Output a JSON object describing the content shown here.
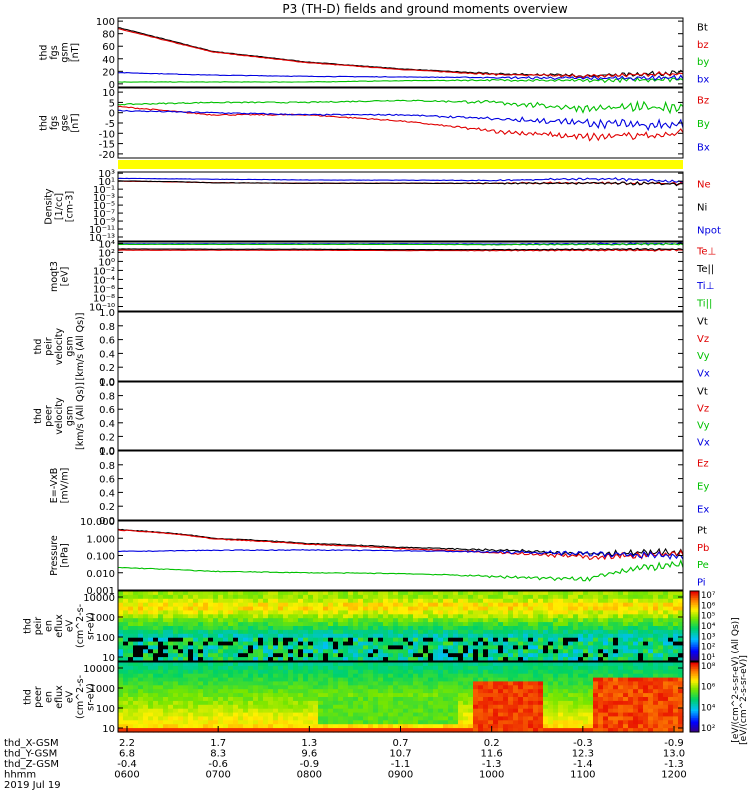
{
  "title": "P3 (TH-D) fields and ground moments overview",
  "colors": {
    "black": "#000000",
    "red": "#e00000",
    "green": "#00c000",
    "blue": "#0000e0",
    "flag_bar": "#ffff00"
  },
  "panels": [
    {
      "id": "fgs-gsm",
      "ylabel": [
        "thd",
        "fgs",
        "gsm",
        "[nT]"
      ],
      "ticks": [
        "100",
        "80",
        "60",
        "40",
        "20",
        "0"
      ],
      "tick_values": [
        100,
        80,
        60,
        40,
        20,
        0
      ],
      "ylim": [
        -5,
        105
      ],
      "legend": [
        {
          "label": "Bt",
          "color": "black"
        },
        {
          "label": "bz",
          "color": "red"
        },
        {
          "label": "by",
          "color": "green"
        },
        {
          "label": "bx",
          "color": "blue"
        }
      ]
    },
    {
      "id": "fgs-gse",
      "ylabel": [
        "thd",
        "fgs",
        "gse",
        "[nT]"
      ],
      "ticks": [
        "10",
        "5",
        "0",
        "-5",
        "-10",
        "-15",
        "-20"
      ],
      "tick_values": [
        10,
        5,
        0,
        -5,
        -10,
        -15,
        -20
      ],
      "ylim": [
        -22,
        12
      ],
      "legend": [
        {
          "label": "Bz",
          "color": "red"
        },
        {
          "label": "By",
          "color": "green"
        },
        {
          "label": "Bx",
          "color": "blue"
        }
      ]
    },
    {
      "id": "density",
      "ylabel": [
        "Density",
        "[1/cc]",
        "[cm-3]"
      ],
      "ticks": [
        "10³",
        "10¹",
        "10⁻¹",
        "10⁻³",
        "10⁻⁵",
        "10⁻⁷",
        "10⁻⁹",
        "10⁻¹¹",
        "10⁻¹³"
      ],
      "tick_values": [
        3,
        1,
        -1,
        -3,
        -5,
        -7,
        -9,
        -11,
        -13
      ],
      "ylim": [
        -14,
        3.3
      ],
      "legend": [
        {
          "label": "Ne",
          "color": "red"
        },
        {
          "label": "Ni",
          "color": "black"
        },
        {
          "label": "Npot",
          "color": "blue"
        }
      ]
    },
    {
      "id": "temperature",
      "ylabel": [
        "moqt3",
        "[eV]"
      ],
      "ticks": [
        "10⁴",
        "10²",
        "10⁰",
        "10⁻²",
        "10⁻⁴",
        "10⁻⁶",
        "10⁻⁸",
        "10⁻¹⁰"
      ],
      "tick_values": [
        4,
        2,
        0,
        -2,
        -4,
        -6,
        -8,
        -10
      ],
      "ylim": [
        -11,
        4.3
      ],
      "legend": [
        {
          "label": "Te⊥",
          "color": "red"
        },
        {
          "label": "Te||",
          "color": "black"
        },
        {
          "label": "Ti⊥",
          "color": "blue"
        },
        {
          "label": "Ti||",
          "color": "green"
        }
      ]
    },
    {
      "id": "peir-velocity",
      "ylabel": [
        "thd",
        "peir",
        "velocity",
        "gsm",
        "[km/s (All Qs)]"
      ],
      "ticks": [
        "1.0",
        "0.8",
        "0.6",
        "0.4",
        "0.2",
        "0.0"
      ],
      "tick_values": [
        1.0,
        0.8,
        0.6,
        0.4,
        0.2,
        0.0
      ],
      "ylim": [
        0,
        1
      ],
      "legend": [
        {
          "label": "Vt",
          "color": "black"
        },
        {
          "label": "Vz",
          "color": "red"
        },
        {
          "label": "Vy",
          "color": "green"
        },
        {
          "label": "Vx",
          "color": "blue"
        }
      ]
    },
    {
      "id": "peer-velocity",
      "ylabel": [
        "thd",
        "peer",
        "velocity",
        "gsm",
        "[km/s (All Qs)]"
      ],
      "ticks": [
        "1.0",
        "0.8",
        "0.6",
        "0.4",
        "0.2",
        "0.0"
      ],
      "tick_values": [
        1.0,
        0.8,
        0.6,
        0.4,
        0.2,
        0.0
      ],
      "ylim": [
        0,
        1
      ],
      "legend": [
        {
          "label": "Vt",
          "color": "black"
        },
        {
          "label": "Vz",
          "color": "red"
        },
        {
          "label": "Vy",
          "color": "green"
        },
        {
          "label": "Vx",
          "color": "blue"
        }
      ]
    },
    {
      "id": "e-field",
      "ylabel": [
        "E=-VxB",
        "[mV/m]"
      ],
      "ticks": [
        "1.0",
        "0.8",
        "0.6",
        "0.4",
        "0.2",
        "0.0"
      ],
      "tick_values": [
        1.0,
        0.8,
        0.6,
        0.4,
        0.2,
        0.0
      ],
      "ylim": [
        0,
        1
      ],
      "legend": [
        {
          "label": "Ez",
          "color": "red"
        },
        {
          "label": "Ey",
          "color": "green"
        },
        {
          "label": "Ex",
          "color": "blue"
        }
      ]
    },
    {
      "id": "pressure",
      "ylabel": [
        "Pressure",
        "[nPa]"
      ],
      "ticks": [
        "10.000",
        "1.000",
        "0.100",
        "0.010",
        "0.001"
      ],
      "tick_values": [
        1,
        0,
        -1,
        -2,
        -3
      ],
      "ylim": [
        -3,
        1
      ],
      "legend": [
        {
          "label": "Pt",
          "color": "black"
        },
        {
          "label": "Pb",
          "color": "red"
        },
        {
          "label": "Pe",
          "color": "green"
        },
        {
          "label": "Pi",
          "color": "blue"
        }
      ]
    },
    {
      "id": "peir-eflux",
      "ylabel": [
        "thd",
        "peir",
        "en",
        "eflux",
        "eV",
        "(cm^2-s-",
        "sr-eV)"
      ],
      "ticks": [
        "10000",
        "1000",
        "100",
        "10"
      ],
      "tick_values": [
        4,
        3,
        2,
        1
      ],
      "ylim": [
        0.8,
        4.3
      ],
      "colorbar_ticks": [
        "10⁷",
        "10⁶",
        "10⁵",
        "10⁴",
        "10³",
        "10²",
        "10¹"
      ],
      "colorbar_label": "[eV/(cm^2-s-sr-eV) (All Qs)]"
    },
    {
      "id": "peer-eflux",
      "ylabel": [
        "thd",
        "peer",
        "en",
        "eflux",
        "eV",
        "(cm^2-s-",
        "sr-eV)"
      ],
      "ticks": [
        "10000",
        "1000",
        "100",
        "10"
      ],
      "tick_values": [
        4,
        3,
        2,
        1
      ],
      "ylim": [
        0.8,
        4.3
      ],
      "colorbar_ticks": [
        "10⁸",
        "10⁶",
        "10⁴",
        "10²"
      ],
      "colorbar_label": "[eV/(cm^2-s-sr-eV)]"
    }
  ],
  "x_axis": {
    "rows": [
      {
        "label": "thd_X-GSM",
        "values": [
          "2.2",
          "1.7",
          "1.3",
          "0.7",
          "0.2",
          "-0.3",
          "-0.9"
        ]
      },
      {
        "label": "thd_Y-GSM",
        "values": [
          "6.8",
          "8.3",
          "9.6",
          "10.7",
          "11.6",
          "12.3",
          "13.0"
        ]
      },
      {
        "label": "thd_Z-GSM",
        "values": [
          "-0.4",
          "-0.6",
          "-0.9",
          "-1.1",
          "-1.3",
          "-1.4",
          "-1.3"
        ]
      },
      {
        "label": "hhmm",
        "values": [
          "0600",
          "0700",
          "0800",
          "0900",
          "1000",
          "1100",
          "1200"
        ]
      }
    ],
    "date": "2019 Jul 19"
  },
  "chart_data": [
    {
      "type": "line",
      "title": "P3 (TH-D) fields and ground moments overview",
      "ylabel": "thd fgs gsm [nT]",
      "ylim": [
        -5,
        105
      ],
      "x": [
        "0600",
        "0700",
        "0800",
        "0900",
        "1000",
        "1100",
        "1200"
      ],
      "series": [
        {
          "name": "Bt",
          "color": "black",
          "values": [
            90,
            52,
            35,
            24,
            16,
            13,
            18
          ]
        },
        {
          "name": "bz",
          "color": "red",
          "values": [
            88,
            51,
            34,
            23,
            15,
            12,
            17
          ]
        },
        {
          "name": "by",
          "color": "green",
          "values": [
            3,
            3,
            3,
            5,
            6,
            5,
            8
          ]
        },
        {
          "name": "bx",
          "color": "blue",
          "values": [
            18,
            14,
            12,
            11,
            10,
            9,
            10
          ]
        }
      ]
    },
    {
      "type": "line",
      "ylabel": "thd fgs gse [nT]",
      "ylim": [
        -22,
        12
      ],
      "x": [
        "0600",
        "0700",
        "0800",
        "0900",
        "1000",
        "1100",
        "1200"
      ],
      "series": [
        {
          "name": "Bz",
          "color": "red",
          "values": [
            3,
            -1,
            -1,
            -4,
            -9,
            -12,
            -10
          ]
        },
        {
          "name": "By",
          "color": "green",
          "values": [
            4,
            5,
            5,
            6,
            5,
            2,
            3
          ]
        },
        {
          "name": "Bx",
          "color": "blue",
          "values": [
            1,
            0,
            -1,
            -1,
            -3,
            -5,
            -6
          ]
        }
      ]
    },
    {
      "type": "line",
      "ylabel": "Density [1/cc] [cm-3]",
      "log_scale": true,
      "x": [
        "0600",
        "0700",
        "0800",
        "0900",
        "1000",
        "1100",
        "1200"
      ],
      "series": [
        {
          "name": "Ne",
          "color": "red",
          "values": [
            10,
            4,
            3,
            3,
            3,
            4,
            2
          ]
        },
        {
          "name": "Ni",
          "color": "black",
          "values": [
            12,
            4,
            3,
            3,
            3,
            3,
            2
          ]
        },
        {
          "name": "Npot",
          "color": "blue",
          "values": [
            50,
            30,
            20,
            18,
            15,
            40,
            5
          ]
        }
      ]
    },
    {
      "type": "line",
      "ylabel": "moqt3 [eV]",
      "log_scale": true,
      "x": [
        "0600",
        "0700",
        "0800",
        "0900",
        "1000",
        "1100",
        "1200"
      ],
      "series": [
        {
          "name": "Te⊥",
          "color": "red",
          "values": [
            300,
            300,
            300,
            250,
            250,
            300,
            300
          ]
        },
        {
          "name": "Te||",
          "color": "black",
          "values": [
            600,
            500,
            500,
            400,
            400,
            500,
            500
          ]
        },
        {
          "name": "Ti⊥",
          "color": "blue",
          "values": [
            8000,
            8000,
            8000,
            8000,
            7000,
            8000,
            8000
          ]
        },
        {
          "name": "Ti||",
          "color": "green",
          "values": [
            6000,
            6000,
            6000,
            6000,
            5000,
            6000,
            6000
          ]
        }
      ]
    },
    {
      "type": "line",
      "ylabel": "Pressure [nPa]",
      "log_scale": true,
      "ylim": [
        0.001,
        10
      ],
      "x": [
        "0600",
        "0700",
        "0800",
        "0900",
        "1000",
        "1100",
        "1200"
      ],
      "series": [
        {
          "name": "Pt",
          "color": "black",
          "values": [
            3.2,
            1.0,
            0.5,
            0.3,
            0.2,
            0.13,
            0.15
          ]
        },
        {
          "name": "Pb",
          "color": "red",
          "values": [
            3.0,
            0.9,
            0.45,
            0.25,
            0.15,
            0.08,
            0.12
          ]
        },
        {
          "name": "Pe",
          "color": "green",
          "values": [
            0.02,
            0.012,
            0.01,
            0.009,
            0.006,
            0.004,
            0.03
          ]
        },
        {
          "name": "Pi",
          "color": "blue",
          "values": [
            0.17,
            0.2,
            0.21,
            0.19,
            0.16,
            0.13,
            0.09
          ]
        }
      ]
    },
    {
      "type": "heatmap",
      "ylabel": "thd peir en eflux eV (cm^2-s-sr-eV)",
      "log_scale": true,
      "ylim": [
        10,
        20000
      ],
      "x": [
        "0600",
        "0700",
        "0800",
        "0900",
        "1000",
        "1100",
        "1200"
      ]
    },
    {
      "type": "heatmap",
      "ylabel": "thd peer en eflux eV (cm^2-s-sr-eV)",
      "log_scale": true,
      "ylim": [
        10,
        20000
      ],
      "x": [
        "0600",
        "0700",
        "0800",
        "0900",
        "1000",
        "1100",
        "1200"
      ]
    }
  ]
}
